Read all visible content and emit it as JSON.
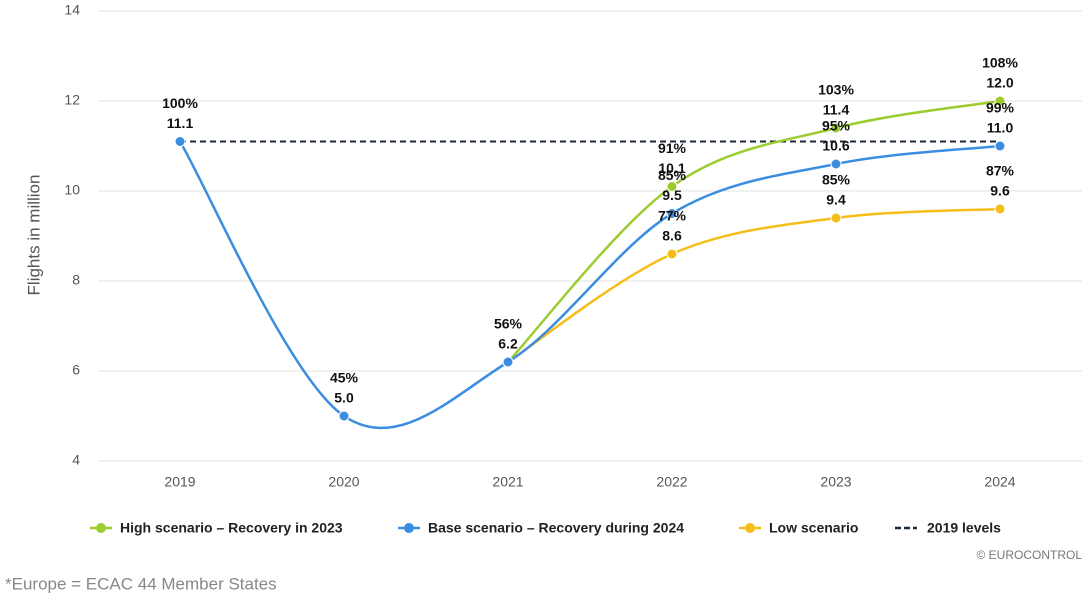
{
  "chart_data": {
    "type": "line",
    "ylabel": "Flights in million",
    "categories": [
      "2019",
      "2020",
      "2021",
      "2022",
      "2023",
      "2024"
    ],
    "ylim": [
      4,
      14
    ],
    "yticks": [
      4,
      6,
      8,
      10,
      12,
      14
    ],
    "grid": true,
    "series": [
      {
        "name": "High scenario – Recovery in 2023",
        "color": "#9ccc2e",
        "values": [
          null,
          null,
          6.2,
          10.1,
          11.4,
          12.0
        ],
        "value_labels": [
          null,
          null,
          null,
          "10.1",
          "11.4",
          "12.0"
        ],
        "percent_labels": [
          null,
          null,
          null,
          "91%",
          "103%",
          "108%"
        ]
      },
      {
        "name": "Base scenario – Recovery during 2024",
        "color": "#3a8de0",
        "values": [
          11.1,
          5.0,
          6.2,
          9.5,
          10.6,
          11.0
        ],
        "value_labels": [
          "11.1",
          "5.0",
          "6.2",
          "9.5",
          "10.6",
          "11.0"
        ],
        "percent_labels": [
          "100%",
          "45%",
          "56%",
          "85%",
          "95%",
          "99%"
        ]
      },
      {
        "name": "Low scenario",
        "color": "#f5bd17",
        "values": [
          null,
          null,
          6.2,
          8.6,
          9.4,
          9.6
        ],
        "value_labels": [
          null,
          null,
          null,
          "8.6",
          "9.4",
          "9.6"
        ],
        "percent_labels": [
          null,
          null,
          null,
          "77%",
          "85%",
          "87%"
        ]
      }
    ],
    "reference": {
      "name": "2019 levels",
      "value": 11.1,
      "color": "#1b2838"
    },
    "credit": "© EUROCONTROL",
    "footnote": "*Europe = ECAC 44 Member States"
  }
}
